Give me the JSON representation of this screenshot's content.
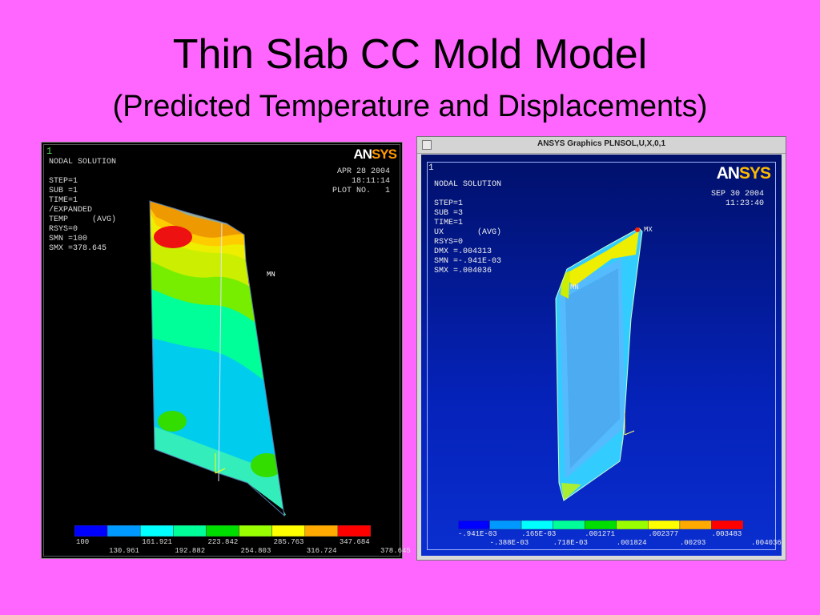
{
  "slide": {
    "title": "Thin Slab CC Mold Model",
    "subtitle": "(Predicted Temperature and Displacements)"
  },
  "left_plot": {
    "window_number": "1",
    "logo_an": "AN",
    "logo_sys": "SYS",
    "info_lines": [
      "NODAL SOLUTION",
      "",
      "STEP=1",
      "SUB =1",
      "TIME=1",
      "/EXPANDED",
      "TEMP     (AVG)",
      "RSYS=0",
      "SMN =100",
      "SMX =378.645"
    ],
    "date": "APR 28 2004",
    "time": "18:11:14",
    "plot_no": "PLOT NO.   1",
    "mn_label": "MN",
    "legend_colors": [
      "#0000ff",
      "#0099ff",
      "#00ffff",
      "#00ff99",
      "#00dd00",
      "#99ff00",
      "#ffff00",
      "#ffaa00",
      "#ff0000"
    ],
    "legend_top_labels": [
      "100",
      "161.921",
      "223.842",
      "285.763",
      "347.684"
    ],
    "legend_bottom_labels": [
      "130.961",
      "192.882",
      "254.803",
      "316.724",
      "378.645"
    ]
  },
  "right_plot": {
    "window_title": "ANSYS Graphics  PLNSOL,U,X,0,1",
    "window_number": "1",
    "logo_an": "AN",
    "logo_sys": "SYS",
    "info_lines": [
      "NODAL SOLUTION",
      "",
      "STEP=1",
      "SUB =3",
      "TIME=1",
      "UX       (AVG)",
      "RSYS=0",
      "DMX =.004313",
      "SMN =-.941E-03",
      "SMX =.004036"
    ],
    "date": "SEP 30 2004",
    "time": "11:23:40",
    "mx_label": "MX",
    "mn_label": "MN",
    "legend_colors": [
      "#0000ff",
      "#0099ff",
      "#00ffff",
      "#00ff99",
      "#00dd00",
      "#99ff00",
      "#ffff00",
      "#ffaa00",
      "#ff0000"
    ],
    "legend_top_labels": [
      "-.941E-03",
      ".165E-03",
      ".001271",
      ".002377",
      ".003483"
    ],
    "legend_bottom_labels": [
      "-.388E-03",
      ".718E-03",
      ".001824",
      ".00293",
      ".004036"
    ]
  }
}
